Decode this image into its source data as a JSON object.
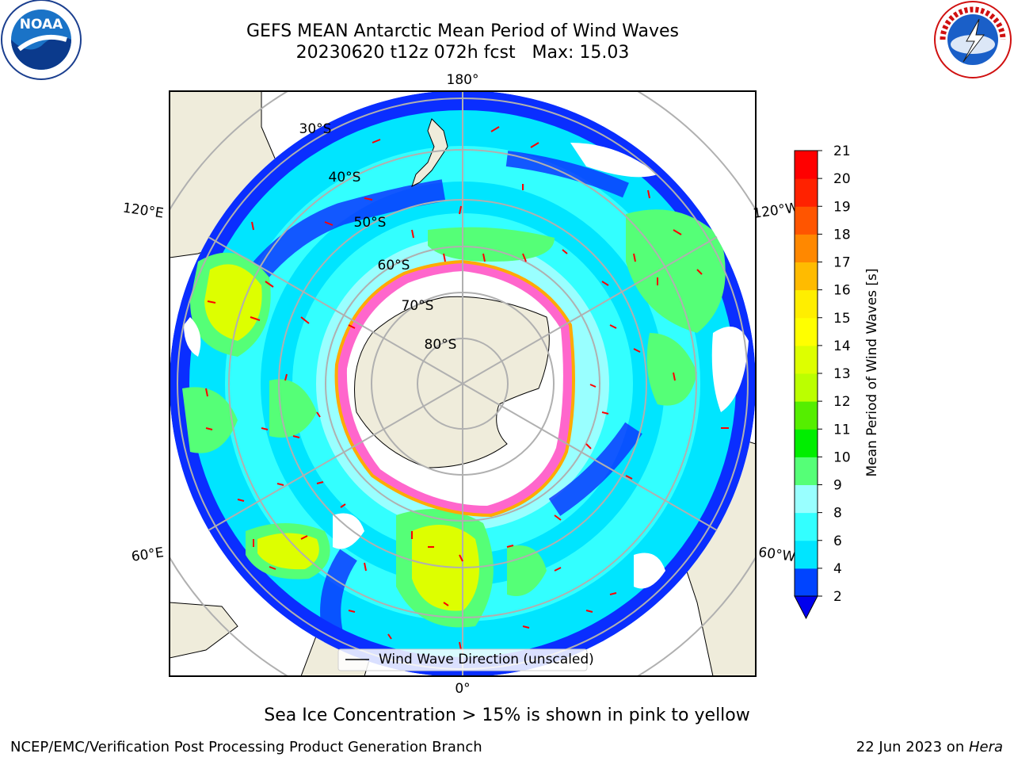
{
  "title": {
    "line1": "GEFS MEAN Antarctic Mean Period of Wind Waves",
    "line2": "20230620 t12z 072h fcst   Max: 15.03"
  },
  "logos": {
    "noaa_text": "NOAA",
    "noaa_ring": "NATIONAL OCEANIC AND ATMOSPHERIC ADMINISTRATION · U.S. DEPARTMENT OF COMMERCE",
    "nws_ring": "NATIONAL WEATHER SERVICE"
  },
  "map": {
    "lon_labels": [
      "180°",
      "120°E",
      "120°W",
      "60°E",
      "60°W",
      "0°"
    ],
    "lat_labels": [
      "30°S",
      "40°S",
      "50°S",
      "60°S",
      "70°S",
      "80°S"
    ],
    "legend_label": "Wind Wave Direction (unscaled)"
  },
  "colorbar": {
    "label": "Mean Period of Wind Waves [s]",
    "ticks": [
      2,
      4,
      6,
      8,
      9,
      10,
      11,
      12,
      13,
      14,
      15,
      16,
      17,
      18,
      19,
      20,
      21
    ],
    "colors": [
      "#0044ff",
      "#00e5ff",
      "#33ffff",
      "#99ffff",
      "#55ff77",
      "#00ee00",
      "#55ee00",
      "#bbff00",
      "#ddff00",
      "#ffff00",
      "#ffee00",
      "#ffbb00",
      "#ff8800",
      "#ff5500",
      "#ff2200",
      "#ff0000"
    ],
    "extend_color": "#0000ee"
  },
  "footer": {
    "note": "Sea Ice Concentration > 15% is shown in pink to yellow",
    "credit": "NCEP/EMC/Verification Post Processing Product Generation Branch",
    "date": "22 Jun 2023 on ",
    "host": "Hera"
  }
}
